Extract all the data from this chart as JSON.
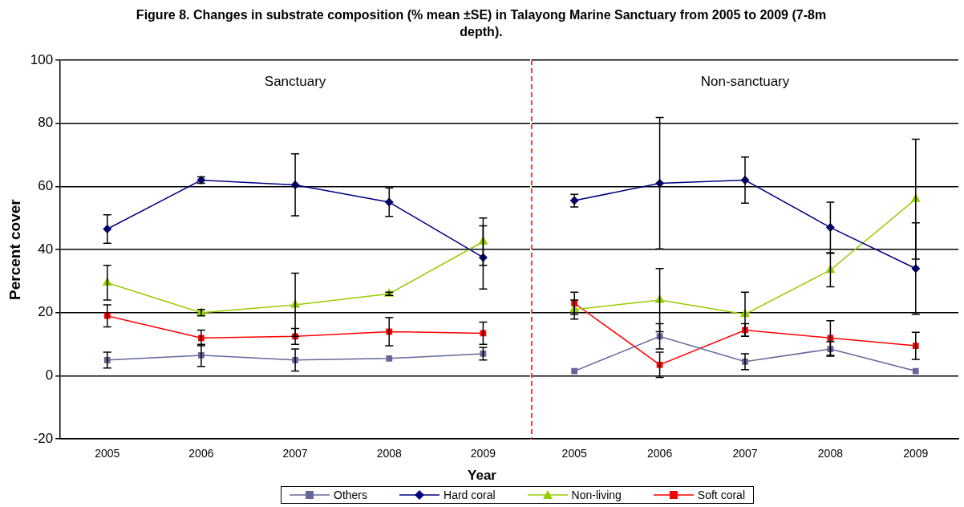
{
  "chart_data": [
    {
      "type": "line",
      "title": "Figure 8. Changes in substrate composition (% mean ±SE) in Talayong Marine Sanctuary from 2005 to 2009 (7-8m depth).",
      "xlabel": "Year",
      "ylabel": "Percent cover",
      "categories": [
        "2005",
        "2006",
        "2007",
        "2008",
        "2009"
      ],
      "series": [
        {
          "name": "Others",
          "color": "#666699",
          "marker": "square",
          "values": [
            5,
            6.5,
            5,
            5.5,
            7
          ],
          "errors": [
            2.5,
            3.5,
            3.5,
            null,
            2
          ]
        },
        {
          "name": "Hard coral",
          "color": "#000080",
          "marker": "diamond",
          "values": [
            46.5,
            62,
            60.5,
            55,
            37.5
          ],
          "errors": [
            4.5,
            1,
            9.8,
            4.5,
            10
          ]
        },
        {
          "name": "Non-living",
          "color": "#99cc00",
          "marker": "triangle",
          "values": [
            29.5,
            20,
            22.5,
            26,
            42.5
          ],
          "errors": [
            5.5,
            1,
            10,
            0.5,
            7.5
          ]
        },
        {
          "name": "Soft coral",
          "color": "#ff0000",
          "marker": "square",
          "values": [
            19,
            12,
            12.5,
            14,
            13.5
          ],
          "errors": [
            3.5,
            2.5,
            2.5,
            4.5,
            3.5
          ]
        }
      ],
      "ylim": [
        -20,
        100
      ],
      "yticks": [
        -20,
        0,
        20,
        40,
        60,
        80,
        100
      ],
      "grid": "y",
      "legend": "bottom",
      "annotations": [
        "Sanctuary"
      ]
    },
    {
      "type": "line",
      "categories": [
        "2005",
        "2006",
        "2007",
        "2008",
        "2009"
      ],
      "series": [
        {
          "color": "#666699",
          "marker": "square",
          "values": [
            1.5,
            12.5,
            4.5,
            8.5,
            1.5
          ],
          "errors": [
            null,
            4,
            2.5,
            2.3,
            null
          ]
        },
        {
          "color": "#000080",
          "marker": "diamond",
          "values": [
            55.5,
            61,
            62,
            47,
            34
          ],
          "errors": [
            2,
            20.8,
            7.3,
            8,
            14.5
          ]
        },
        {
          "color": "#99cc00",
          "marker": "triangle",
          "values": [
            21,
            24,
            19.5,
            33.5,
            56
          ],
          "errors": [
            3,
            10,
            7,
            5.3,
            19
          ]
        },
        {
          "color": "#ff0000",
          "marker": "square",
          "values": [
            23,
            3.5,
            14.5,
            12,
            9.5
          ],
          "errors": [
            3.5,
            4,
            2,
            5.5,
            4.3
          ]
        }
      ],
      "ylim": [
        -20,
        100
      ],
      "yticks": [
        -20,
        0,
        20,
        40,
        60,
        80,
        100
      ],
      "grid": "y",
      "tick_labels": "x",
      "annotations": [
        "Non-sanctuary"
      ]
    }
  ]
}
